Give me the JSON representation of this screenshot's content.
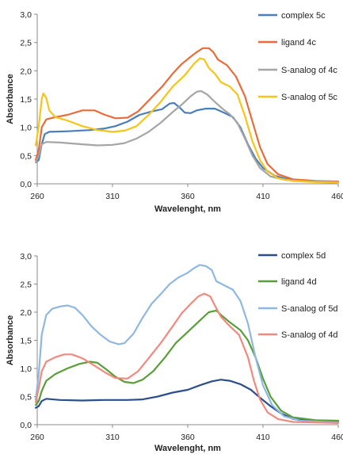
{
  "chart_data": [
    {
      "type": "line",
      "xlabel": "Wavelenght, nm",
      "ylabel": "Absorbance",
      "xlim": [
        260,
        460
      ],
      "ylim": [
        0,
        3
      ],
      "x_ticks": [
        "260",
        "310",
        "360",
        "410",
        "460"
      ],
      "y_ticks": [
        "0,0",
        "0,5",
        "1,0",
        "1,5",
        "2,0",
        "2,5",
        "3,0"
      ],
      "legend": "right",
      "grid": false,
      "series": [
        {
          "name": "complex 5c",
          "color": "#4a7ebb",
          "points": [
            [
              259,
              0.38
            ],
            [
              261,
              0.42
            ],
            [
              263,
              0.7
            ],
            [
              265,
              0.88
            ],
            [
              268,
              0.92
            ],
            [
              280,
              0.93
            ],
            [
              295,
              0.95
            ],
            [
              305,
              0.98
            ],
            [
              312,
              1.02
            ],
            [
              320,
              1.1
            ],
            [
              328,
              1.22
            ],
            [
              336,
              1.28
            ],
            [
              343,
              1.32
            ],
            [
              348,
              1.42
            ],
            [
              351,
              1.43
            ],
            [
              355,
              1.34
            ],
            [
              358,
              1.26
            ],
            [
              362,
              1.25
            ],
            [
              366,
              1.3
            ],
            [
              372,
              1.33
            ],
            [
              378,
              1.33
            ],
            [
              384,
              1.26
            ],
            [
              390,
              1.18
            ],
            [
              395,
              1.0
            ],
            [
              400,
              0.7
            ],
            [
              405,
              0.45
            ],
            [
              410,
              0.28
            ],
            [
              418,
              0.14
            ],
            [
              428,
              0.07
            ],
            [
              440,
              0.04
            ],
            [
              460,
              0.03
            ]
          ]
        },
        {
          "name": "ligand 4c",
          "color": "#e86c3b",
          "points": [
            [
              259,
              0.42
            ],
            [
              261,
              0.6
            ],
            [
              263,
              1.0
            ],
            [
              266,
              1.14
            ],
            [
              272,
              1.18
            ],
            [
              280,
              1.22
            ],
            [
              290,
              1.3
            ],
            [
              298,
              1.3
            ],
            [
              305,
              1.22
            ],
            [
              312,
              1.16
            ],
            [
              320,
              1.17
            ],
            [
              327,
              1.28
            ],
            [
              335,
              1.5
            ],
            [
              343,
              1.72
            ],
            [
              350,
              1.95
            ],
            [
              356,
              2.12
            ],
            [
              362,
              2.25
            ],
            [
              366,
              2.33
            ],
            [
              370,
              2.4
            ],
            [
              374,
              2.4
            ],
            [
              377,
              2.33
            ],
            [
              380,
              2.2
            ],
            [
              386,
              2.1
            ],
            [
              392,
              1.9
            ],
            [
              398,
              1.55
            ],
            [
              403,
              1.1
            ],
            [
              408,
              0.65
            ],
            [
              413,
              0.35
            ],
            [
              420,
              0.17
            ],
            [
              430,
              0.08
            ],
            [
              445,
              0.05
            ],
            [
              460,
              0.04
            ]
          ]
        },
        {
          "name": "S-analog of 4c",
          "color": "#a5a5a5",
          "points": [
            [
              259,
              0.38
            ],
            [
              261,
              0.5
            ],
            [
              263,
              0.7
            ],
            [
              266,
              0.74
            ],
            [
              275,
              0.73
            ],
            [
              290,
              0.7
            ],
            [
              300,
              0.68
            ],
            [
              310,
              0.69
            ],
            [
              318,
              0.72
            ],
            [
              326,
              0.8
            ],
            [
              334,
              0.92
            ],
            [
              342,
              1.08
            ],
            [
              350,
              1.27
            ],
            [
              356,
              1.4
            ],
            [
              362,
              1.55
            ],
            [
              366,
              1.63
            ],
            [
              369,
              1.64
            ],
            [
              373,
              1.58
            ],
            [
              378,
              1.45
            ],
            [
              383,
              1.33
            ],
            [
              388,
              1.23
            ],
            [
              393,
              1.08
            ],
            [
              398,
              0.8
            ],
            [
              403,
              0.5
            ],
            [
              408,
              0.28
            ],
            [
              415,
              0.13
            ],
            [
              425,
              0.07
            ],
            [
              440,
              0.04
            ],
            [
              460,
              0.03
            ]
          ]
        },
        {
          "name": "S-analog of 5c",
          "color": "#f5c518",
          "points": [
            [
              259,
              0.68
            ],
            [
              261,
              1.02
            ],
            [
              263,
              1.5
            ],
            [
              264,
              1.6
            ],
            [
              266,
              1.52
            ],
            [
              268,
              1.3
            ],
            [
              272,
              1.18
            ],
            [
              280,
              1.12
            ],
            [
              290,
              1.02
            ],
            [
              300,
              0.95
            ],
            [
              310,
              0.92
            ],
            [
              318,
              0.94
            ],
            [
              326,
              1.02
            ],
            [
              334,
              1.22
            ],
            [
              342,
              1.45
            ],
            [
              350,
              1.72
            ],
            [
              358,
              1.92
            ],
            [
              364,
              2.12
            ],
            [
              368,
              2.22
            ],
            [
              371,
              2.2
            ],
            [
              374,
              2.05
            ],
            [
              378,
              1.95
            ],
            [
              382,
              1.8
            ],
            [
              388,
              1.72
            ],
            [
              393,
              1.58
            ],
            [
              398,
              1.2
            ],
            [
              403,
              0.75
            ],
            [
              408,
              0.42
            ],
            [
              413,
              0.22
            ],
            [
              420,
              0.1
            ],
            [
              430,
              0.05
            ],
            [
              445,
              0.03
            ],
            [
              460,
              0.02
            ]
          ]
        }
      ]
    },
    {
      "type": "line",
      "xlabel": "Wavelenght, nm",
      "ylabel": "Absorbance",
      "xlim": [
        260,
        460
      ],
      "ylim": [
        0,
        3
      ],
      "x_ticks": [
        "260",
        "310",
        "360",
        "410",
        "460"
      ],
      "y_ticks": [
        "0,0",
        "0,5",
        "1,0",
        "1,5",
        "2,0",
        "2,5",
        "3,0"
      ],
      "legend": "right",
      "grid": false,
      "series": [
        {
          "name": "complex 5d",
          "color": "#2c4f8c",
          "points": [
            [
              259,
              0.3
            ],
            [
              261,
              0.33
            ],
            [
              263,
              0.42
            ],
            [
              266,
              0.46
            ],
            [
              275,
              0.44
            ],
            [
              290,
              0.43
            ],
            [
              305,
              0.44
            ],
            [
              320,
              0.44
            ],
            [
              330,
              0.45
            ],
            [
              340,
              0.5
            ],
            [
              350,
              0.57
            ],
            [
              360,
              0.62
            ],
            [
              368,
              0.7
            ],
            [
              376,
              0.77
            ],
            [
              382,
              0.8
            ],
            [
              388,
              0.78
            ],
            [
              395,
              0.72
            ],
            [
              402,
              0.62
            ],
            [
              408,
              0.48
            ],
            [
              415,
              0.33
            ],
            [
              422,
              0.2
            ],
            [
              430,
              0.1
            ],
            [
              440,
              0.07
            ],
            [
              450,
              0.06
            ],
            [
              460,
              0.05
            ]
          ]
        },
        {
          "name": "ligand 4d",
          "color": "#5a9e3a",
          "points": [
            [
              259,
              0.35
            ],
            [
              261,
              0.42
            ],
            [
              263,
              0.6
            ],
            [
              266,
              0.78
            ],
            [
              272,
              0.9
            ],
            [
              280,
              1.0
            ],
            [
              288,
              1.08
            ],
            [
              295,
              1.12
            ],
            [
              300,
              1.1
            ],
            [
              306,
              0.98
            ],
            [
              312,
              0.85
            ],
            [
              318,
              0.76
            ],
            [
              324,
              0.74
            ],
            [
              330,
              0.8
            ],
            [
              337,
              0.95
            ],
            [
              345,
              1.2
            ],
            [
              352,
              1.45
            ],
            [
              360,
              1.65
            ],
            [
              368,
              1.85
            ],
            [
              374,
              2.0
            ],
            [
              379,
              2.03
            ],
            [
              383,
              1.93
            ],
            [
              388,
              1.82
            ],
            [
              395,
              1.68
            ],
            [
              400,
              1.5
            ],
            [
              405,
              1.2
            ],
            [
              410,
              0.82
            ],
            [
              415,
              0.5
            ],
            [
              422,
              0.25
            ],
            [
              430,
              0.13
            ],
            [
              445,
              0.08
            ],
            [
              460,
              0.07
            ]
          ]
        },
        {
          "name": "S-analog of 5d",
          "color": "#8fb8e0",
          "points": [
            [
              259,
              0.45
            ],
            [
              261,
              0.9
            ],
            [
              263,
              1.6
            ],
            [
              266,
              1.95
            ],
            [
              270,
              2.06
            ],
            [
              275,
              2.1
            ],
            [
              280,
              2.12
            ],
            [
              285,
              2.08
            ],
            [
              290,
              1.95
            ],
            [
              296,
              1.75
            ],
            [
              302,
              1.6
            ],
            [
              308,
              1.48
            ],
            [
              314,
              1.43
            ],
            [
              318,
              1.45
            ],
            [
              324,
              1.62
            ],
            [
              330,
              1.9
            ],
            [
              336,
              2.15
            ],
            [
              342,
              2.32
            ],
            [
              348,
              2.5
            ],
            [
              354,
              2.62
            ],
            [
              360,
              2.7
            ],
            [
              364,
              2.78
            ],
            [
              368,
              2.84
            ],
            [
              372,
              2.82
            ],
            [
              376,
              2.75
            ],
            [
              379,
              2.55
            ],
            [
              384,
              2.48
            ],
            [
              390,
              2.4
            ],
            [
              395,
              2.2
            ],
            [
              400,
              1.8
            ],
            [
              405,
              1.2
            ],
            [
              410,
              0.7
            ],
            [
              416,
              0.35
            ],
            [
              424,
              0.15
            ],
            [
              435,
              0.07
            ],
            [
              450,
              0.05
            ],
            [
              460,
              0.04
            ]
          ]
        },
        {
          "name": "S-analog of 4d",
          "color": "#f08a80",
          "points": [
            [
              259,
              0.4
            ],
            [
              261,
              0.65
            ],
            [
              263,
              0.95
            ],
            [
              266,
              1.12
            ],
            [
              272,
              1.2
            ],
            [
              278,
              1.25
            ],
            [
              283,
              1.25
            ],
            [
              290,
              1.18
            ],
            [
              298,
              1.05
            ],
            [
              305,
              0.93
            ],
            [
              312,
              0.83
            ],
            [
              320,
              0.82
            ],
            [
              327,
              0.95
            ],
            [
              334,
              1.18
            ],
            [
              342,
              1.45
            ],
            [
              350,
              1.75
            ],
            [
              356,
              1.98
            ],
            [
              362,
              2.15
            ],
            [
              367,
              2.28
            ],
            [
              371,
              2.33
            ],
            [
              375,
              2.28
            ],
            [
              378,
              2.12
            ],
            [
              382,
              1.92
            ],
            [
              388,
              1.75
            ],
            [
              394,
              1.6
            ],
            [
              400,
              1.2
            ],
            [
              404,
              0.78
            ],
            [
              408,
              0.45
            ],
            [
              413,
              0.22
            ],
            [
              420,
              0.1
            ],
            [
              430,
              0.05
            ],
            [
              445,
              0.04
            ],
            [
              460,
              0.03
            ]
          ]
        }
      ]
    }
  ]
}
